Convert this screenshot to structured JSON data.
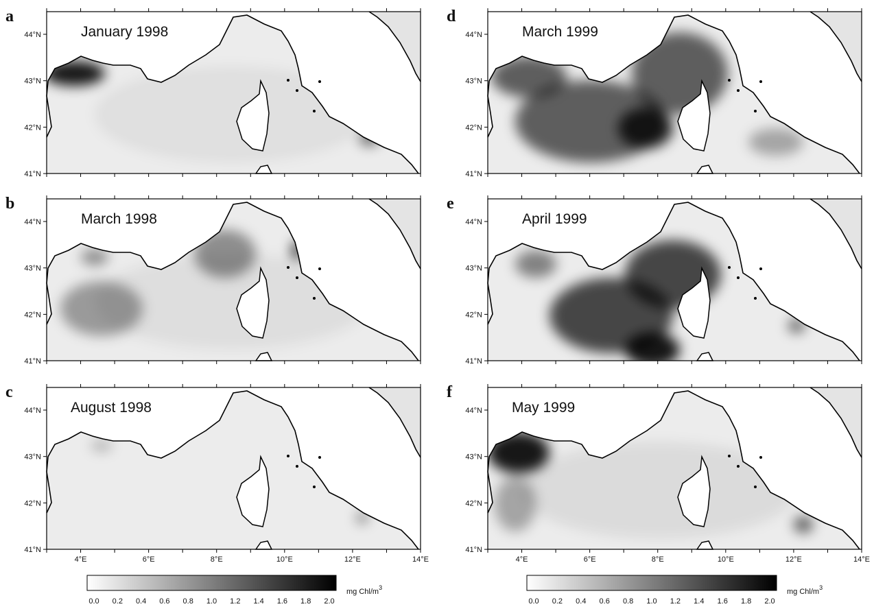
{
  "panels": [
    {
      "letter": "a",
      "title": "January 1998"
    },
    {
      "letter": "b",
      "title": "March 1998"
    },
    {
      "letter": "c",
      "title": "August 1998"
    },
    {
      "letter": "d",
      "title": "March 1999"
    },
    {
      "letter": "e",
      "title": "April 1999"
    },
    {
      "letter": "f",
      "title": "May 1999"
    }
  ],
  "lat_labels": [
    "44°N",
    "43°N",
    "42°N",
    "41°N"
  ],
  "lon_labels": [
    "4°E",
    "6°E",
    "8°E",
    "10°E",
    "12°E",
    "14°E"
  ],
  "colorbar": {
    "ticks": [
      "0.0",
      "0.2",
      "0.4",
      "0.6",
      "0.8",
      "1.0",
      "1.2",
      "1.4",
      "1.6",
      "1.8",
      "2.0"
    ],
    "unit": "mg Chl/m",
    "unit_superscript": "3"
  }
}
